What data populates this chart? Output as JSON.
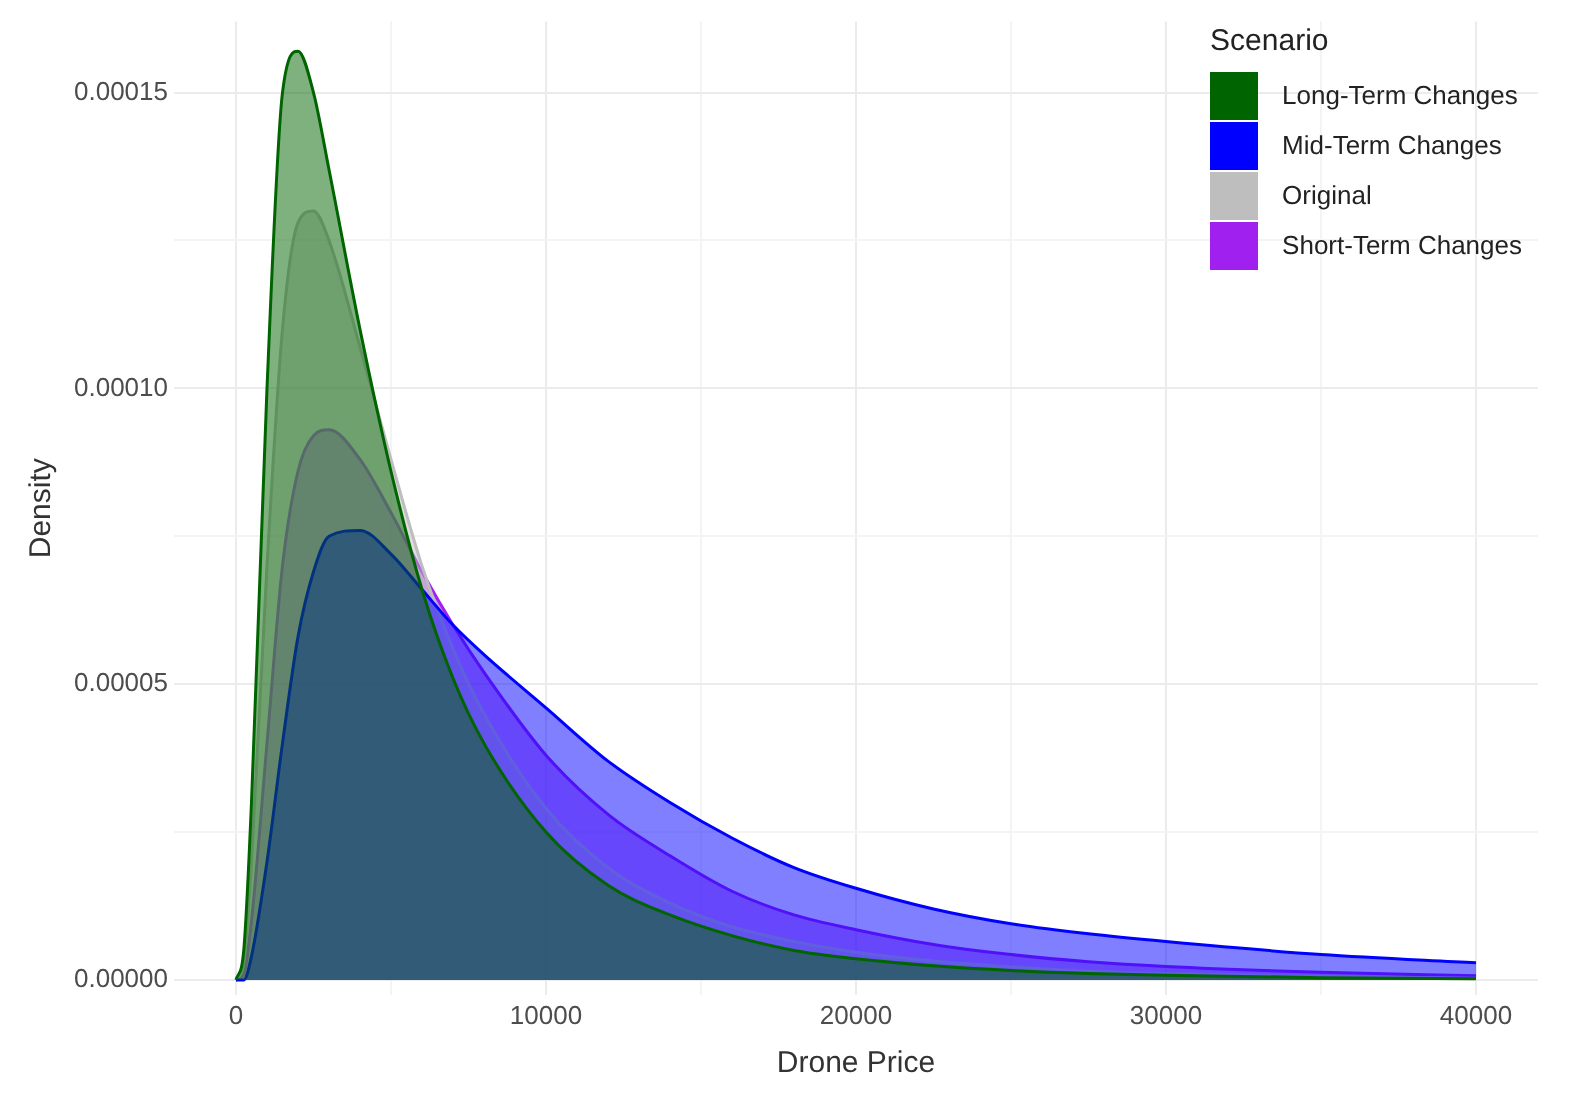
{
  "chart_data": {
    "type": "area",
    "xlabel": "Drone Price",
    "ylabel": "Density",
    "legend_title": "Scenario",
    "legend": "top right",
    "grid": true,
    "marker": "none",
    "line_style": "solid",
    "x": [
      0,
      250,
      500,
      1000,
      1500,
      2000,
      2500,
      3000,
      4000,
      5000,
      6000,
      7000,
      8000,
      10000,
      12000,
      14000,
      16000,
      18000,
      20000,
      22500,
      25000,
      27500,
      30000,
      35000,
      40000
    ],
    "xlim": [
      -2000,
      42000
    ],
    "xticks": [
      0,
      {
        "value": 5000,
        "label": null
      },
      10000,
      {
        "value": 15000,
        "label": null
      },
      20000,
      {
        "value": 25000,
        "label": null
      },
      30000,
      {
        "value": 35000,
        "label": null
      },
      40000
    ],
    "ylim": [
      -2.5e-06,
      0.000162
    ],
    "yticks": [
      {
        "value": 0,
        "label": "0.00000"
      },
      {
        "value": 2.5e-05,
        "label": null
      },
      {
        "value": 5e-05,
        "label": "0.00005"
      },
      {
        "value": 7.5e-05,
        "label": null
      },
      {
        "value": 0.0001,
        "label": "0.00010"
      },
      {
        "value": 0.000125,
        "label": null
      },
      {
        "value": 0.00015,
        "label": "0.00015"
      }
    ],
    "series": [
      {
        "name": "Long-Term Changes",
        "color": "#006400",
        "values": [
          0,
          5e-06,
          3e-05,
          0.0001,
          0.00015,
          0.000157,
          0.00015,
          0.000137,
          0.00011,
          8.6e-05,
          6.6e-05,
          5.1e-05,
          4e-05,
          2.5e-05,
          1.6e-05,
          1.1e-05,
          7.5e-06,
          5e-06,
          3.6e-06,
          2.4e-06,
          1.6e-06,
          1.1e-06,
          8e-07,
          4e-07,
          2e-07
        ]
      },
      {
        "name": "Mid-Term Changes",
        "color": "#0000ff",
        "values": [
          0,
          0,
          4e-06,
          2e-05,
          4e-05,
          5.8e-05,
          6.9e-05,
          7.5e-05,
          7.6e-05,
          7.2e-05,
          6.6e-05,
          6e-05,
          5.5e-05,
          4.6e-05,
          3.7e-05,
          3e-05,
          2.4e-05,
          1.9e-05,
          1.55e-05,
          1.2e-05,
          9.5e-06,
          7.8e-06,
          6.5e-06,
          4.3e-06,
          2.9e-06
        ]
      },
      {
        "name": "Original",
        "color": "#bebebe",
        "values": [
          0,
          3e-06,
          2e-05,
          7e-05,
          0.00011,
          0.000128,
          0.00013,
          0.000125,
          0.000107,
          8.8e-05,
          7e-05,
          5.6e-05,
          4.5e-05,
          2.9e-05,
          1.9e-05,
          1.3e-05,
          9e-06,
          6.5e-06,
          4.7e-06,
          3.2e-06,
          2.2e-06,
          1.5e-06,
          1.1e-06,
          6e-07,
          3e-07
        ]
      },
      {
        "name": "Short-Term Changes",
        "color": "#a020f0",
        "values": [
          0,
          1e-06,
          1e-05,
          4e-05,
          7e-05,
          8.6e-05,
          9.2e-05,
          9.3e-05,
          8.8e-05,
          7.9e-05,
          6.9e-05,
          6e-05,
          5.2e-05,
          3.8e-05,
          2.8e-05,
          2.1e-05,
          1.5e-05,
          1.1e-05,
          8.5e-06,
          6e-06,
          4.3e-06,
          3.1e-06,
          2.3e-06,
          1.3e-06,
          7e-07
        ]
      }
    ]
  }
}
